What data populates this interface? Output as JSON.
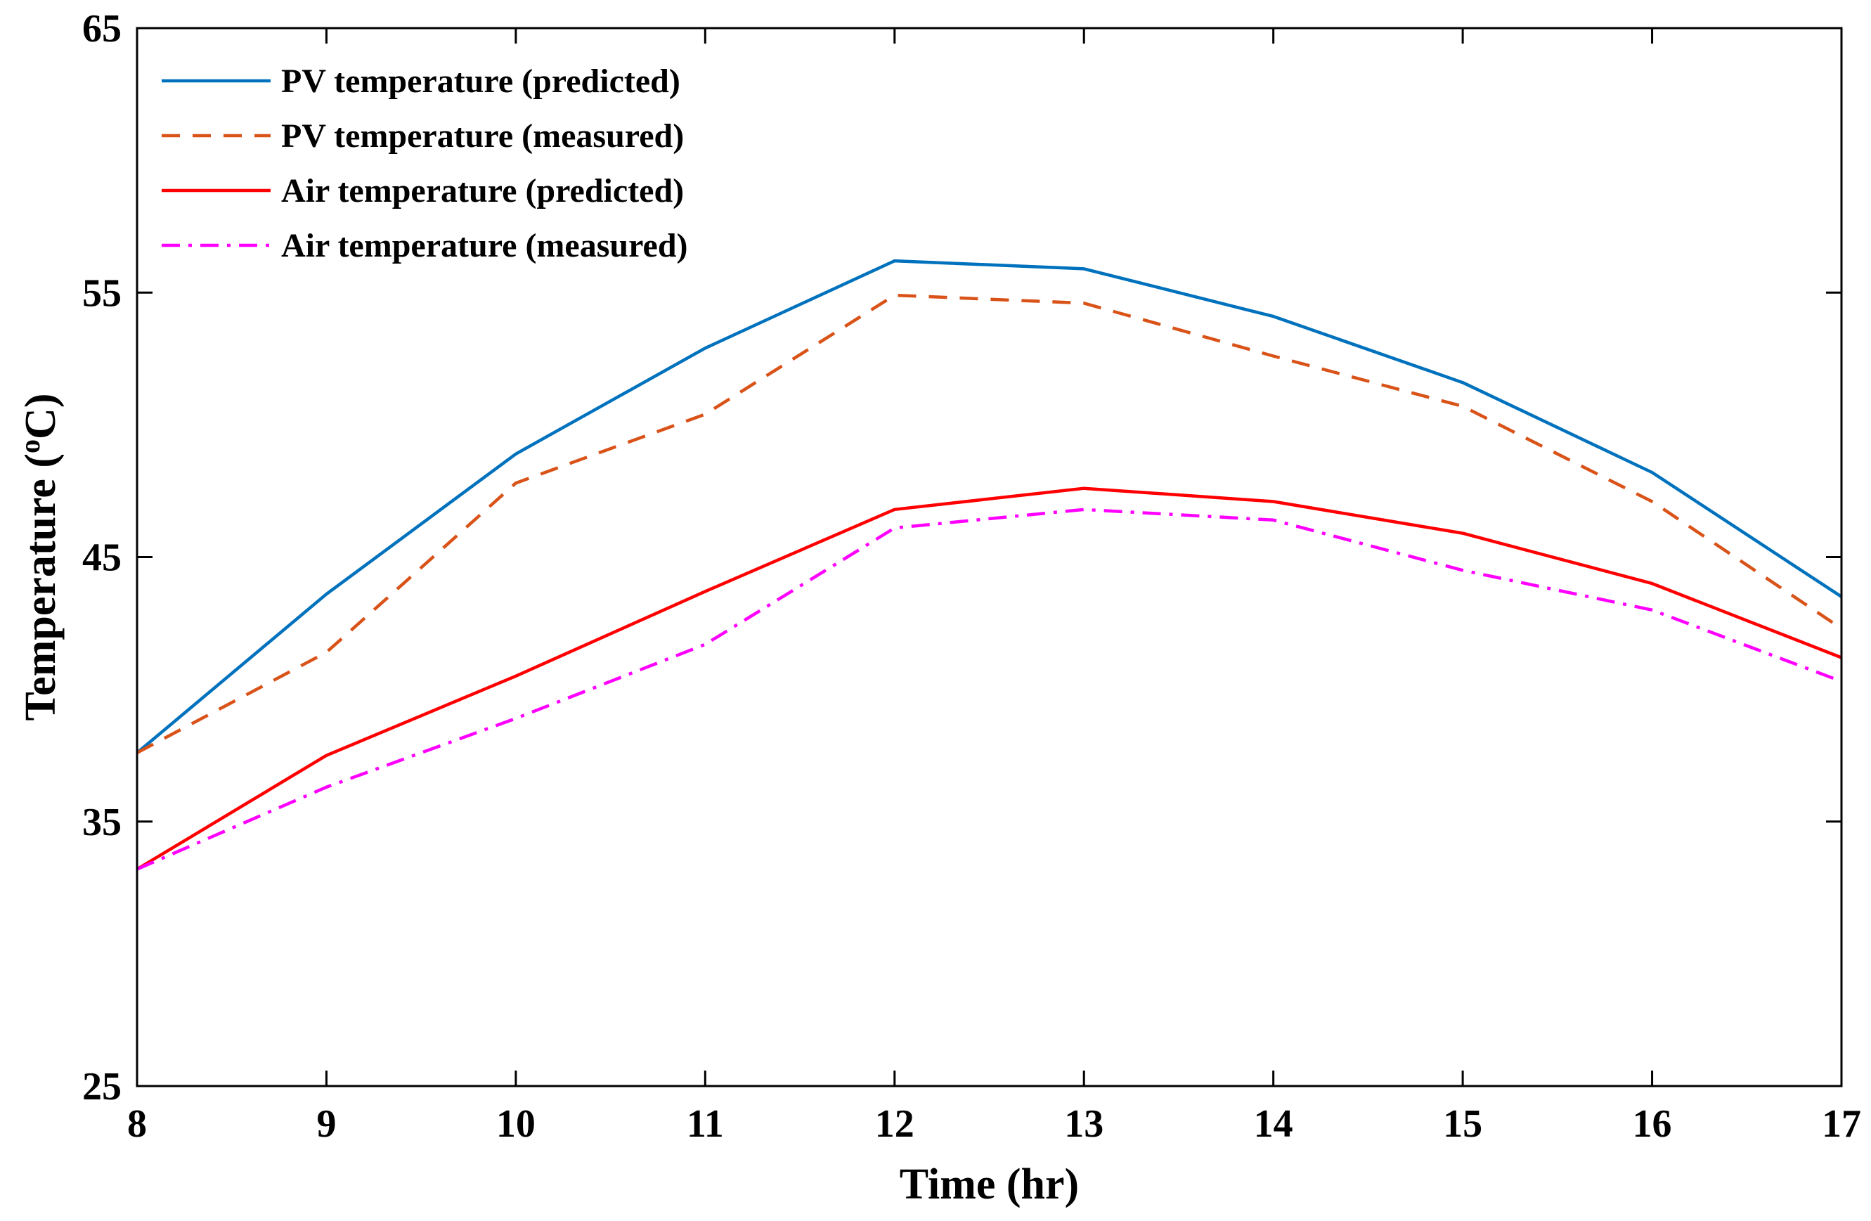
{
  "chart_data": {
    "type": "line",
    "title": "",
    "xlabel": "Time (hr)",
    "ylabel": "Temperature (",
    "ylabel_sup": "o",
    "ylabel_suffix": "C)",
    "xlim": [
      8,
      17
    ],
    "ylim": [
      25,
      65
    ],
    "xticks": [
      8,
      9,
      10,
      11,
      12,
      13,
      14,
      15,
      16,
      17
    ],
    "xtick_labels": [
      "8",
      "9",
      "10",
      "11",
      "12",
      "13",
      "14",
      "15",
      "16",
      "17"
    ],
    "yticks": [
      25,
      35,
      45,
      55,
      65
    ],
    "ytick_labels": [
      "25",
      "35",
      "45",
      "55",
      "65"
    ],
    "grid": false,
    "legend_position": "top-left",
    "x": [
      8,
      9,
      10,
      11,
      12,
      13,
      14,
      15,
      16,
      17
    ],
    "series": [
      {
        "name": "PV temperature (predicted)",
        "values": [
          37.6,
          43.6,
          48.9,
          52.9,
          56.2,
          55.9,
          54.1,
          51.6,
          48.2,
          43.5
        ],
        "color": "#0072BD",
        "dash": "solid"
      },
      {
        "name": "PV temperature (measured)",
        "values": [
          37.6,
          41.4,
          47.8,
          50.4,
          54.9,
          54.6,
          52.6,
          50.7,
          47.1,
          42.3
        ],
        "color": "#D95319",
        "dash": "dashed"
      },
      {
        "name": "Air temperature (predicted)",
        "values": [
          33.2,
          37.5,
          40.5,
          43.7,
          46.8,
          47.6,
          47.1,
          45.9,
          44.0,
          41.2
        ],
        "color": "#FF0000",
        "dash": "solid"
      },
      {
        "name": "Air temperature (measured)",
        "values": [
          33.2,
          36.3,
          38.9,
          41.7,
          46.1,
          46.8,
          46.4,
          44.5,
          43.0,
          40.3
        ],
        "color": "#FF00FF",
        "dash": "dashdot"
      }
    ]
  }
}
